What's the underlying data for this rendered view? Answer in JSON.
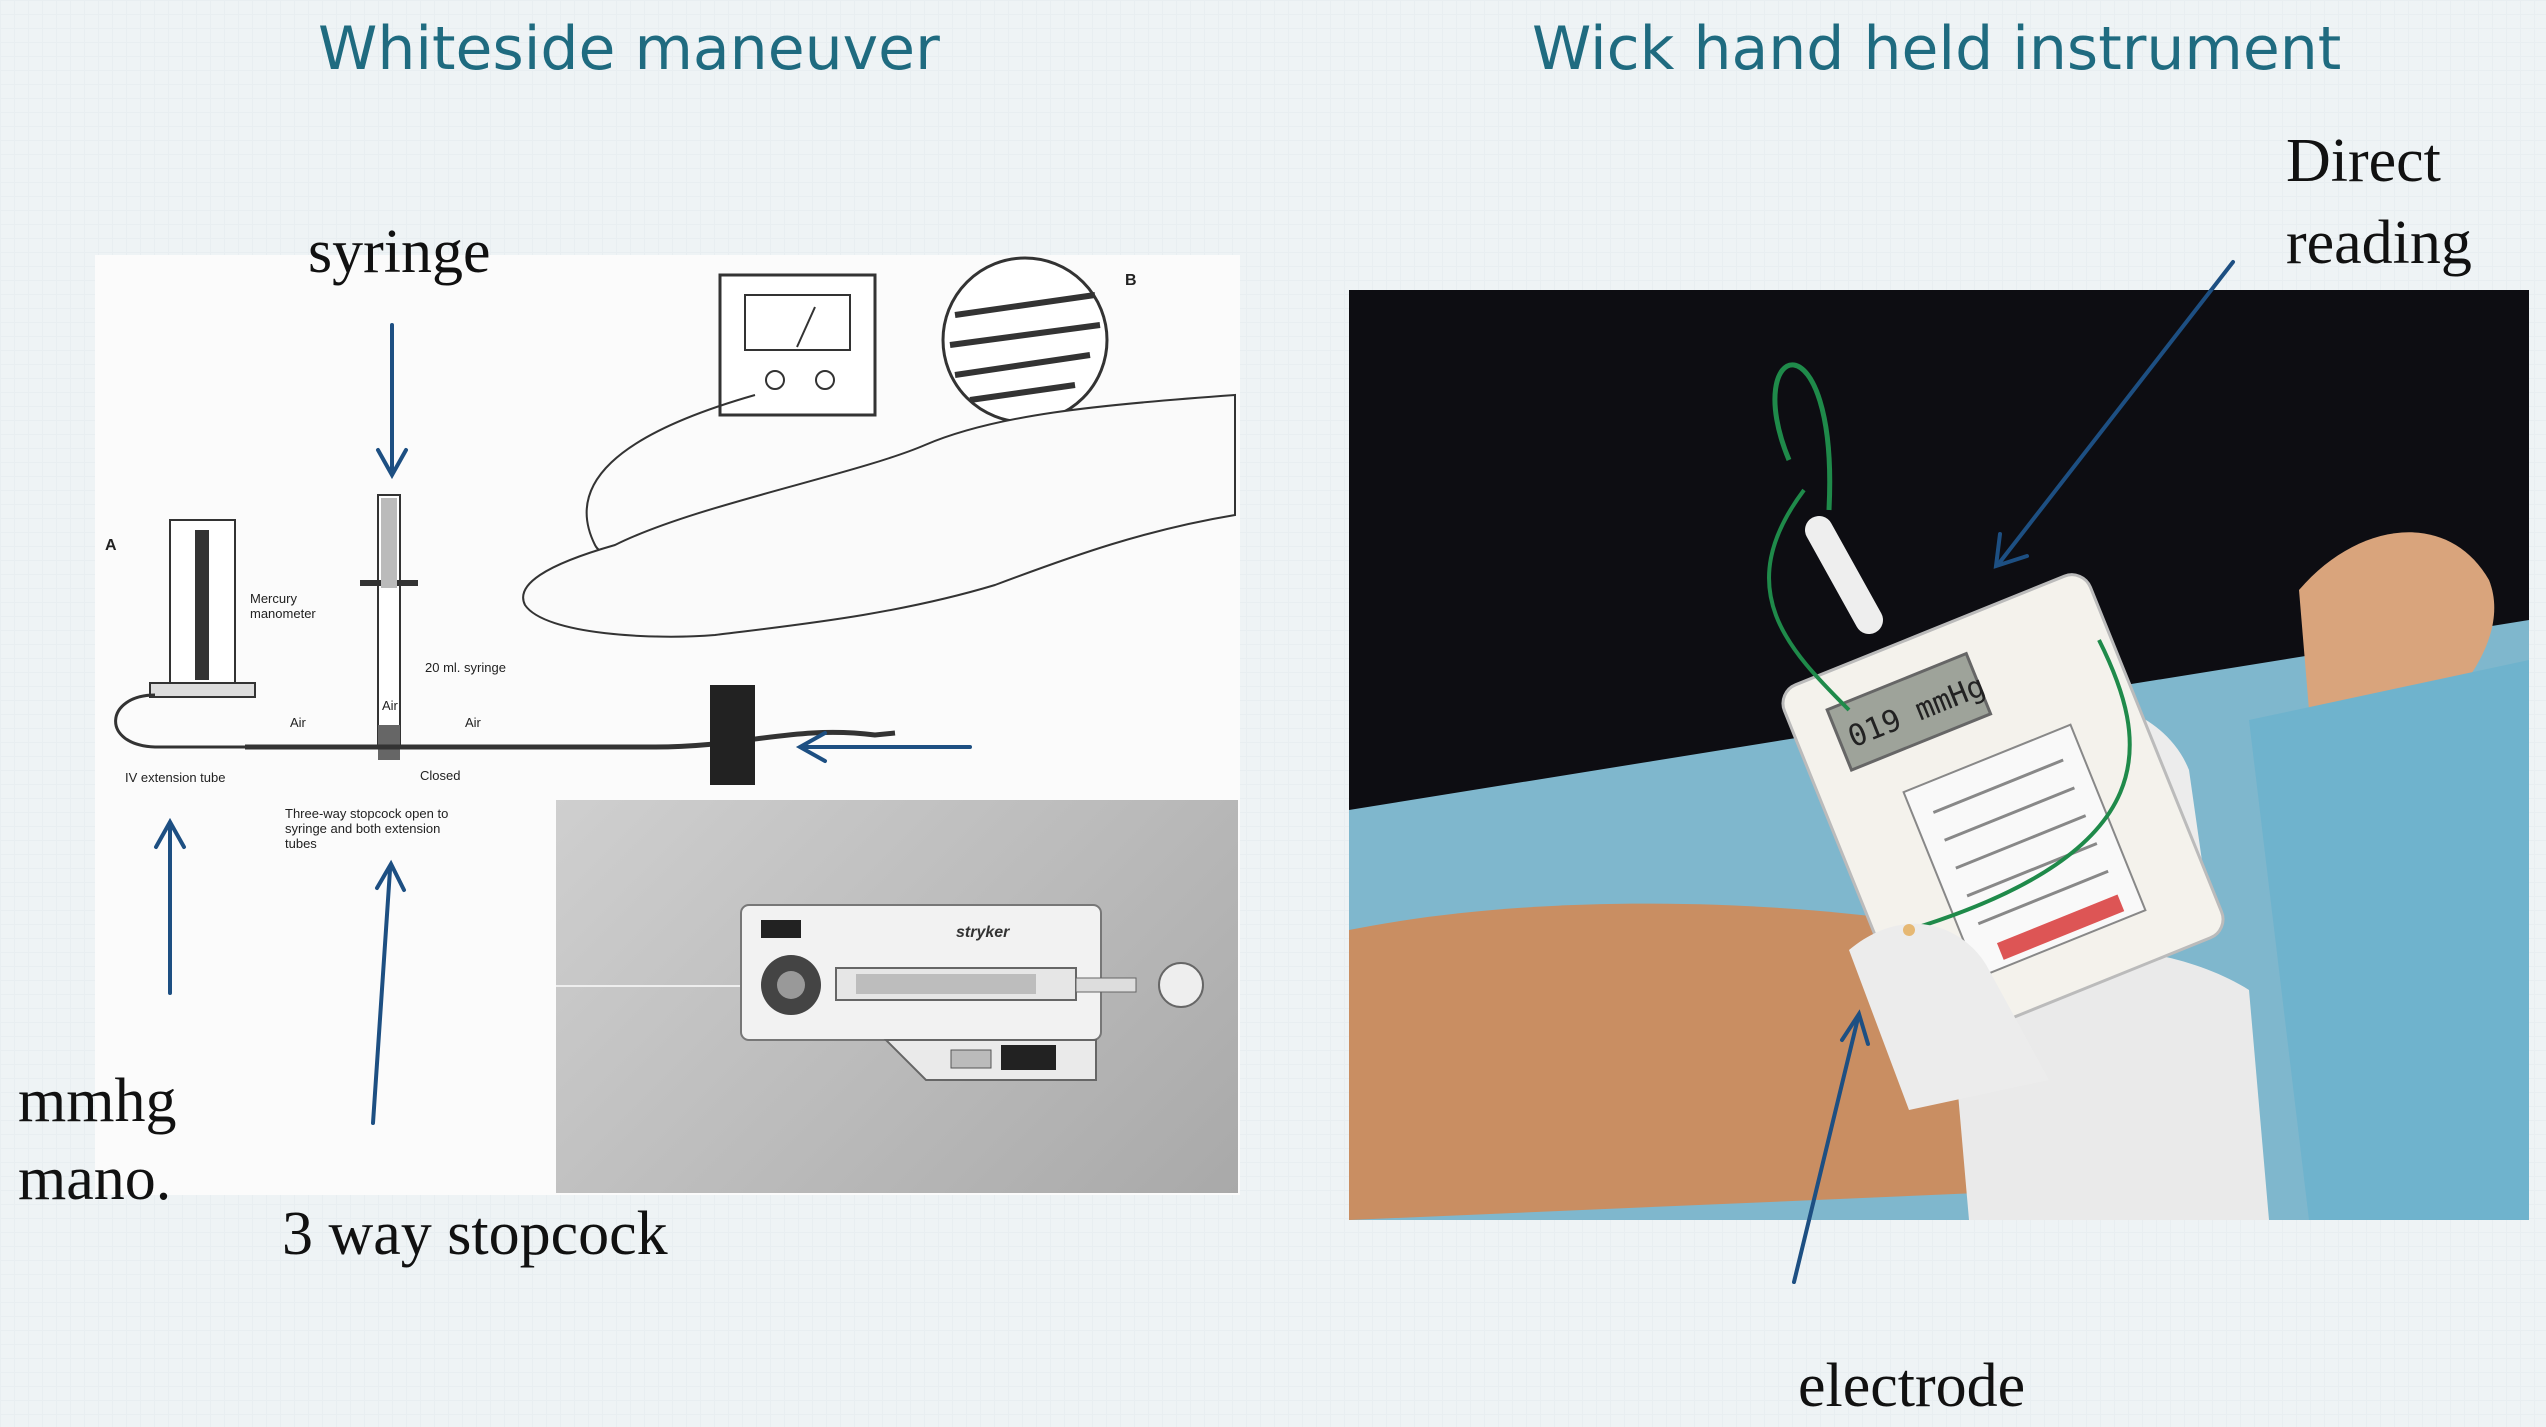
{
  "headings": {
    "left": "Whiteside maneuver",
    "right": "Wick hand held instrument"
  },
  "labels": {
    "syringe": "syringe",
    "manometer_line1": "mmhg",
    "manometer_line2": "mano.",
    "stopcock": "3 way stopcock",
    "direct_line1": "Direct",
    "direct_line2": "reading",
    "electrode": "electrode"
  },
  "diagram_text": {
    "panel_a": "A",
    "panel_b": "B",
    "mercury_1": "Mercury",
    "mercury_2": "manometer",
    "syringe_note": "20 ml. syringe",
    "air": "Air",
    "closed": "Closed",
    "iv_tube": "IV extension tube",
    "stopcock_1": "Three-way stopcock open to",
    "stopcock_2": "syringe and both extension",
    "stopcock_3": "tubes",
    "stryker": "stryker"
  },
  "device": {
    "display": "019 mmHg"
  },
  "colors": {
    "heading": "#1f6b80",
    "arrow": "#1d4f82",
    "background": "#eef3f5"
  }
}
